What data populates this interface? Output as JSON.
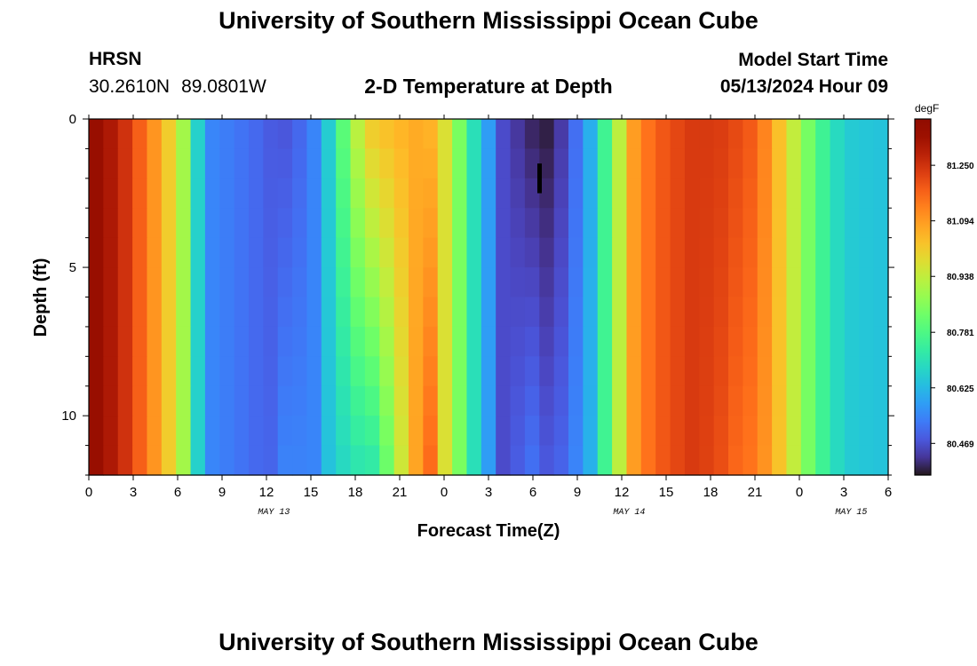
{
  "page": {
    "title": "University of Southern Mississippi Ocean Cube",
    "footer_title": "University of Southern Mississippi Ocean Cube",
    "station": "HRSN",
    "lat": "30.2610N",
    "lon": "89.0801W",
    "subtitle": "2-D Temperature at Depth",
    "model_label": "Model Start Time",
    "model_date": "05/13/2024 Hour 09"
  },
  "chart_data": {
    "type": "heatmap",
    "title": "2-D Temperature at Depth",
    "xlabel": "Forecast Time(Z)",
    "ylabel": "Depth (ft)",
    "x_unit": "hours since model start (05/13/2024 09Z)",
    "x_range_hours": [
      -9,
      45
    ],
    "x_tick_labels": [
      "0",
      "3",
      "6",
      "9",
      "12",
      "15",
      "18",
      "21",
      "0",
      "3",
      "6",
      "9",
      "12",
      "15",
      "18",
      "21",
      "0",
      "3",
      "6"
    ],
    "day_labels": [
      {
        "label": "MAY 13",
        "hour_offset": 3.5
      },
      {
        "label": "MAY 14",
        "hour_offset": 27.5
      },
      {
        "label": "MAY 15",
        "hour_offset": 42.5
      }
    ],
    "y_range": [
      0,
      12
    ],
    "y_tick_labels": [
      0,
      5,
      10
    ],
    "y_inverted": true,
    "colorbar": {
      "unit": "degF",
      "ticks": [
        "81.250",
        "81.094",
        "80.938",
        "80.781",
        "80.625",
        "80.469"
      ],
      "tick_values": [
        81.25,
        81.094,
        80.938,
        80.781,
        80.625,
        80.469
      ],
      "vmin": 80.38,
      "vmax": 81.38,
      "colormap": "turbo"
    },
    "depth_levels": [
      0,
      1,
      2,
      3,
      4,
      5,
      6,
      7,
      8,
      9,
      10,
      11,
      12
    ],
    "time_hours": [
      -9,
      -8,
      -7,
      -6,
      -5,
      -4,
      -3,
      -2,
      -1,
      0,
      1,
      2,
      3,
      4,
      5,
      6,
      7,
      8,
      9,
      10,
      11,
      12,
      13,
      14,
      15,
      16,
      17,
      18,
      19,
      20,
      21,
      22,
      23,
      24,
      25,
      26,
      27,
      28,
      29,
      30,
      31,
      32,
      33,
      34,
      35,
      36,
      37,
      38,
      39,
      40,
      41,
      42,
      43,
      44,
      45
    ],
    "surface_temp_profile": [
      [
        -9,
        81.36
      ],
      [
        -7,
        81.28
      ],
      [
        -5,
        81.14
      ],
      [
        -4,
        81.05
      ],
      [
        -3,
        80.96
      ],
      [
        -2,
        80.8
      ],
      [
        -1.5,
        80.62
      ],
      [
        -1,
        80.55
      ],
      [
        2,
        80.51
      ],
      [
        4,
        80.47
      ],
      [
        6,
        80.52
      ],
      [
        7,
        80.63
      ],
      [
        8,
        80.78
      ],
      [
        9,
        80.92
      ],
      [
        10,
        81.02
      ],
      [
        11,
        81.04
      ],
      [
        13,
        81.07
      ],
      [
        14,
        81.06
      ],
      [
        15,
        80.98
      ],
      [
        16,
        80.85
      ],
      [
        17,
        80.7
      ],
      [
        18,
        80.58
      ],
      [
        19,
        80.46
      ],
      [
        21,
        80.4
      ],
      [
        22,
        80.39
      ],
      [
        23,
        80.44
      ],
      [
        24,
        80.52
      ],
      [
        25,
        80.62
      ],
      [
        26,
        80.78
      ],
      [
        27,
        80.96
      ],
      [
        28,
        81.12
      ],
      [
        30,
        81.2
      ],
      [
        32,
        81.24
      ],
      [
        34,
        81.23
      ],
      [
        36,
        81.18
      ],
      [
        37,
        81.1
      ],
      [
        38,
        81.0
      ],
      [
        39,
        80.9
      ],
      [
        40,
        80.8
      ],
      [
        41,
        80.72
      ],
      [
        42,
        80.66
      ],
      [
        43,
        80.65
      ],
      [
        45,
        80.64
      ]
    ],
    "depth_effects": [
      {
        "t_start": 3,
        "t_end": 6,
        "peak_t": 4.5,
        "max_change_at_bottom": 0.08
      },
      {
        "t_start": 7,
        "t_end": 14,
        "peak_t": 10,
        "max_change_at_bottom": -0.32
      },
      {
        "t_start": 11,
        "t_end": 15,
        "peak_t": 14,
        "max_change_at_bottom": 0.12
      },
      {
        "t_start": 19,
        "t_end": 25,
        "peak_t": 21,
        "max_change_at_bottom": 0.12
      },
      {
        "t_start": 32,
        "t_end": 38,
        "peak_t": 35,
        "max_change_at_bottom": -0.05
      }
    ],
    "missing_cells": [
      {
        "t_start": 21.3,
        "t_end": 21.6,
        "depth_start": 1.5,
        "depth_end": 2.5
      }
    ]
  }
}
